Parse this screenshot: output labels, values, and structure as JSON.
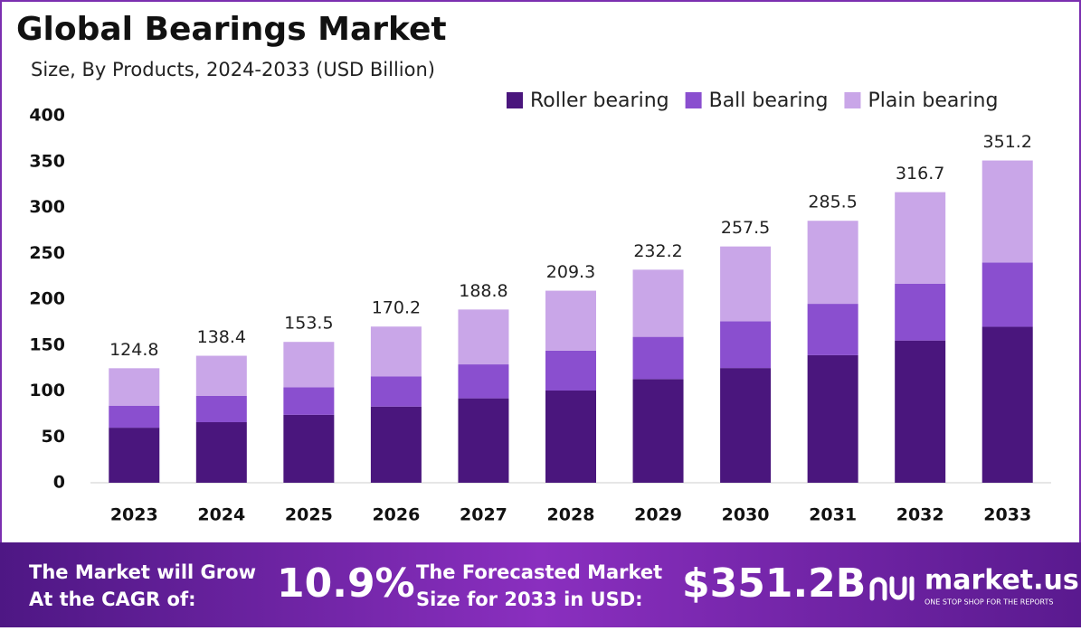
{
  "chart_data": {
    "type": "stacked-bar",
    "title": "Global Bearings Market",
    "subtitle": "Size, By Products, 2024-2033 (USD Billion)",
    "categories": [
      "2023",
      "2024",
      "2025",
      "2026",
      "2027",
      "2028",
      "2029",
      "2030",
      "2031",
      "2032",
      "2033"
    ],
    "series": [
      {
        "name": "Roller bearing",
        "color": "#4a167d",
        "values": [
          60,
          66,
          74,
          83,
          92,
          100.5,
          113,
          125,
          139,
          155,
          170
        ]
      },
      {
        "name": "Ball bearing",
        "color": "#8a4fcf",
        "values": [
          24,
          28.6,
          30,
          33,
          37,
          43.5,
          46,
          51,
          56,
          62,
          70
        ]
      },
      {
        "name": "Plain bearing",
        "color": "#c9a6e8",
        "values": [
          40.8,
          43.8,
          49.5,
          54.2,
          59.8,
          65.3,
          73.2,
          81.5,
          90.5,
          99.7,
          111.2
        ]
      }
    ],
    "totals": [
      124.8,
      138.4,
      153.5,
      170.2,
      188.8,
      209.3,
      232.2,
      257.5,
      285.5,
      316.7,
      351.2
    ],
    "ylim": [
      0,
      400
    ],
    "yticks": [
      0,
      50,
      100,
      150,
      200,
      250,
      300,
      350,
      400
    ],
    "grid": false
  },
  "footer": {
    "cagr_text": [
      "The Market will Grow",
      "At the CAGR of:"
    ],
    "cagr_value": "10.9%",
    "forecast_text": [
      "The Forecasted Market",
      "Size for 2033 in USD:"
    ],
    "forecast_value": "$351.2B",
    "brand": "market.us",
    "tagline": "ONE STOP SHOP FOR THE REPORTS"
  }
}
